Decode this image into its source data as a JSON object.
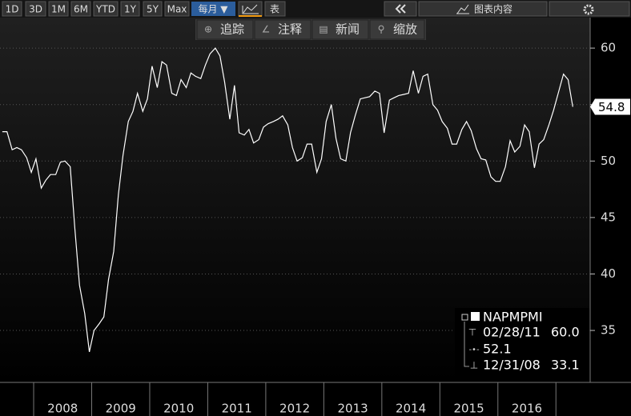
{
  "toolbar": {
    "periods": [
      "1D",
      "3D",
      "1M",
      "6M",
      "YTD",
      "1Y",
      "5Y",
      "Max"
    ],
    "frequency": "每月 ▼",
    "table": "表",
    "chart_content": "图表内容",
    "tools": [
      "追踪",
      "注释",
      "新闻",
      "缩放"
    ]
  },
  "chart_data": {
    "type": "line",
    "x": [
      2007.46,
      2007.54,
      2007.63,
      2007.71,
      2007.79,
      2007.88,
      2007.96,
      2008.04,
      2008.13,
      2008.21,
      2008.29,
      2008.38,
      2008.46,
      2008.54,
      2008.63,
      2008.71,
      2008.79,
      2008.88,
      2008.96,
      2009.04,
      2009.13,
      2009.21,
      2009.29,
      2009.38,
      2009.46,
      2009.54,
      2009.63,
      2009.71,
      2009.79,
      2009.88,
      2009.96,
      2010.04,
      2010.13,
      2010.21,
      2010.29,
      2010.38,
      2010.46,
      2010.54,
      2010.63,
      2010.71,
      2010.79,
      2010.88,
      2010.96,
      2011.04,
      2011.13,
      2011.21,
      2011.29,
      2011.38,
      2011.46,
      2011.54,
      2011.63,
      2011.71,
      2011.79,
      2011.88,
      2011.96,
      2012.04,
      2012.13,
      2012.21,
      2012.29,
      2012.38,
      2012.46,
      2012.54,
      2012.63,
      2012.71,
      2012.79,
      2012.88,
      2012.96,
      2013.04,
      2013.13,
      2013.21,
      2013.29,
      2013.38,
      2013.46,
      2013.54,
      2013.63,
      2013.71,
      2013.79,
      2013.88,
      2013.96,
      2014.04,
      2014.13,
      2014.21,
      2014.29,
      2014.38,
      2014.46,
      2014.54,
      2014.63,
      2014.71,
      2014.79,
      2014.88,
      2014.96,
      2015.04,
      2015.13,
      2015.21,
      2015.29,
      2015.38,
      2015.46,
      2015.54,
      2015.63,
      2015.71,
      2015.79,
      2015.88,
      2015.96,
      2016.04,
      2016.13,
      2016.21,
      2016.29,
      2016.38,
      2016.46,
      2016.54,
      2016.63,
      2016.71,
      2016.79,
      2016.88,
      2016.96,
      2017.04,
      2017.13,
      2017.21,
      2017.29
    ],
    "series": [
      {
        "name": "NAPMPMI",
        "color": "#ffffff",
        "values": [
          52.6,
          52.6,
          51.0,
          51.2,
          51.0,
          50.3,
          49.0,
          50.2,
          47.6,
          48.3,
          48.8,
          48.8,
          49.9,
          50.0,
          49.5,
          44.0,
          39.0,
          36.5,
          33.1,
          35.0,
          35.6,
          36.2,
          39.5,
          42.0,
          47.0,
          50.5,
          53.5,
          54.4,
          56.0,
          54.4,
          55.5,
          58.4,
          56.5,
          58.8,
          58.5,
          56.0,
          55.8,
          57.2,
          56.5,
          57.8,
          57.5,
          57.3,
          58.5,
          59.5,
          60.0,
          59.3,
          57.0,
          53.7,
          56.7,
          52.5,
          52.3,
          52.8,
          51.6,
          51.9,
          53.0,
          53.3,
          53.5,
          53.7,
          54.0,
          53.2,
          51.2,
          50.0,
          50.3,
          51.5,
          51.5,
          49.0,
          50.2,
          53.5,
          55.0,
          52.0,
          50.2,
          50.0,
          52.5,
          54.0,
          55.5,
          55.6,
          55.7,
          56.2,
          56.0,
          52.5,
          55.4,
          55.6,
          55.8,
          55.9,
          56.0,
          58.0,
          56.0,
          57.5,
          57.7,
          55.0,
          54.5,
          53.5,
          52.9,
          51.5,
          51.5,
          52.8,
          53.5,
          52.7,
          51.1,
          50.2,
          50.1,
          48.6,
          48.2,
          48.2,
          49.5,
          51.8,
          50.8,
          51.3,
          53.2,
          52.6,
          49.4,
          51.5,
          51.9,
          53.2,
          54.5,
          56.0,
          57.7,
          57.2,
          54.8
        ]
      }
    ],
    "xlim": [
      2007.42,
      2017.59
    ],
    "xticks": [
      {
        "value": 2008.5,
        "label": "2008"
      },
      {
        "value": 2009.5,
        "label": "2009"
      },
      {
        "value": 2010.5,
        "label": "2010"
      },
      {
        "value": 2011.5,
        "label": "2011"
      },
      {
        "value": 2012.5,
        "label": "2012"
      },
      {
        "value": 2013.5,
        "label": "2013"
      },
      {
        "value": 2014.5,
        "label": "2014"
      },
      {
        "value": 2015.5,
        "label": "2015"
      },
      {
        "value": 2016.5,
        "label": "2016"
      }
    ],
    "ylim": [
      30.4,
      62.7
    ],
    "yticks": [
      35,
      40,
      45,
      50,
      55,
      60
    ],
    "grid": true,
    "stats": {
      "high": {
        "date": "02/28/11",
        "value": 60,
        "label": "60.0"
      },
      "average": 52.1,
      "low": {
        "date": "12/31/08",
        "value": 33.1
      }
    }
  }
}
